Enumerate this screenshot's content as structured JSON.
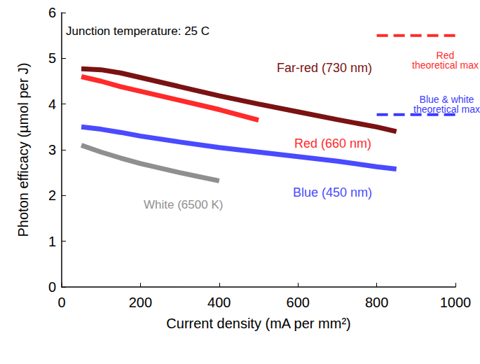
{
  "chart_data": {
    "type": "line",
    "xlabel": "Current density (mA per mm²)",
    "ylabel": "Photon efficacy (µmol per J)",
    "xlim": [
      0,
      1000
    ],
    "xticks": [
      0,
      200,
      400,
      600,
      800,
      1000
    ],
    "ylim": [
      0,
      6
    ],
    "yticks": [
      0,
      1,
      2,
      3,
      4,
      5,
      6
    ],
    "grid": false,
    "annotations": [
      {
        "text": "Junction temperature: 25 C"
      }
    ],
    "series": [
      {
        "name": "Far-red (730 nm)",
        "color": "#7a1212",
        "marker": "none",
        "line_style": "solid",
        "x": [
          50,
          100,
          150,
          200,
          300,
          400,
          500,
          600,
          700,
          800,
          850
        ],
        "values": [
          4.77,
          4.75,
          4.68,
          4.58,
          4.38,
          4.18,
          4.0,
          3.83,
          3.66,
          3.5,
          3.4
        ]
      },
      {
        "name": "Red (660 nm)",
        "color": "#ff2a2a",
        "marker": "none",
        "line_style": "solid",
        "x": [
          50,
          100,
          150,
          200,
          300,
          400,
          500
        ],
        "values": [
          4.6,
          4.5,
          4.38,
          4.28,
          4.08,
          3.88,
          3.65
        ]
      },
      {
        "name": "Blue (450 nm)",
        "color": "#4a4aff",
        "marker": "none",
        "line_style": "solid",
        "x": [
          50,
          100,
          150,
          200,
          300,
          400,
          500,
          600,
          700,
          800,
          850
        ],
        "values": [
          3.5,
          3.45,
          3.38,
          3.3,
          3.17,
          3.05,
          2.95,
          2.85,
          2.75,
          2.63,
          2.58
        ]
      },
      {
        "name": "White (6500 K)",
        "color": "#8f8f8f",
        "marker": "none",
        "line_style": "solid",
        "x": [
          50,
          100,
          150,
          200,
          300,
          400
        ],
        "values": [
          3.1,
          2.95,
          2.82,
          2.7,
          2.5,
          2.32
        ]
      },
      {
        "name": "Red\ntheoretical max",
        "color": "#ff2a2a",
        "marker": "none",
        "line_style": "dashed",
        "x": [
          800,
          1000
        ],
        "values": [
          5.5,
          5.5
        ]
      },
      {
        "name": "Blue & white\ntheoretical max",
        "color": "#3a3aff",
        "marker": "none",
        "line_style": "dashed",
        "x": [
          800,
          1000
        ],
        "values": [
          3.77,
          3.77
        ]
      }
    ]
  }
}
